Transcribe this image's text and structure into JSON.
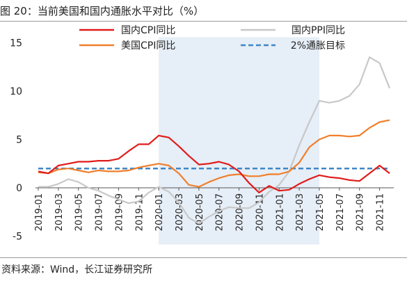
{
  "title": "图 20：当前美国和国内通胀水平对比（%）",
  "source": "资料来源：Wind，长江证券研究所",
  "chart_data": {
    "type": "line",
    "title": "当前美国和国内通胀水平对比（%）",
    "x": [
      "2019-01",
      "2019-02",
      "2019-03",
      "2019-04",
      "2019-05",
      "2019-06",
      "2019-07",
      "2019-08",
      "2019-09",
      "2019-10",
      "2019-11",
      "2019-12",
      "2020-01",
      "2020-02",
      "2020-03",
      "2020-04",
      "2020-05",
      "2020-06",
      "2020-07",
      "2020-08",
      "2020-09",
      "2020-10",
      "2020-11",
      "2020-12",
      "2021-01",
      "2021-02",
      "2021-03",
      "2021-04",
      "2021-05",
      "2021-06",
      "2021-07",
      "2021-08",
      "2021-09",
      "2021-10",
      "2021-11",
      "2021-12"
    ],
    "xticks": [
      "2019-01",
      "2019-03",
      "2019-05",
      "2019-07",
      "2019-09",
      "2019-11",
      "2020-01",
      "2020-03",
      "2020-05",
      "2020-07",
      "2020-09",
      "2020-11",
      "2021-01",
      "2021-03",
      "2021-05",
      "2021-07",
      "2021-09",
      "2021-11"
    ],
    "yticks": [
      15,
      10,
      5,
      0,
      -5
    ],
    "ylim": [
      -5,
      15
    ],
    "shaded_range": [
      "2020-01",
      "2021-05"
    ],
    "series": [
      {
        "name": "国内CPI同比",
        "color": "#e01b1b",
        "values": [
          1.7,
          1.5,
          2.3,
          2.5,
          2.7,
          2.7,
          2.8,
          2.8,
          3.0,
          3.8,
          4.5,
          4.5,
          5.4,
          5.2,
          4.3,
          3.3,
          2.4,
          2.5,
          2.7,
          2.4,
          1.7,
          0.5,
          -0.5,
          0.2,
          -0.3,
          -0.2,
          0.4,
          0.9,
          1.3,
          1.1,
          1.0,
          0.8,
          0.7,
          1.5,
          2.3,
          1.5
        ]
      },
      {
        "name": "国内PPI同比",
        "color": "#c8c8c8",
        "values": [
          0.1,
          0.1,
          0.4,
          0.9,
          0.6,
          0.0,
          -0.3,
          -0.8,
          -1.2,
          -1.6,
          -1.4,
          -0.5,
          0.1,
          -0.4,
          -1.5,
          -3.1,
          -3.7,
          -3.0,
          -2.4,
          -2.0,
          -2.1,
          -2.1,
          -1.5,
          -0.4,
          0.3,
          1.7,
          4.4,
          6.8,
          9.0,
          8.8,
          9.0,
          9.5,
          10.7,
          13.5,
          12.9,
          10.3
        ]
      },
      {
        "name": "美国CPI同比",
        "color": "#f07f2b",
        "values": [
          1.6,
          1.5,
          1.9,
          2.0,
          1.8,
          1.6,
          1.8,
          1.7,
          1.7,
          1.8,
          2.1,
          2.3,
          2.5,
          2.3,
          1.5,
          0.3,
          0.1,
          0.6,
          1.0,
          1.3,
          1.4,
          1.2,
          1.2,
          1.4,
          1.4,
          1.7,
          2.6,
          4.2,
          5.0,
          5.4,
          5.4,
          5.3,
          5.4,
          6.2,
          6.8,
          7.0
        ]
      },
      {
        "name": "2%通胀目标",
        "color": "#3f86c6",
        "dashed": true,
        "values": [
          2,
          2,
          2,
          2,
          2,
          2,
          2,
          2,
          2,
          2,
          2,
          2,
          2,
          2,
          2,
          2,
          2,
          2,
          2,
          2,
          2,
          2,
          2,
          2,
          2,
          2,
          2,
          2,
          2,
          2,
          2,
          2,
          2,
          2,
          2,
          2
        ]
      }
    ],
    "legend_position": "top",
    "grid": false
  }
}
